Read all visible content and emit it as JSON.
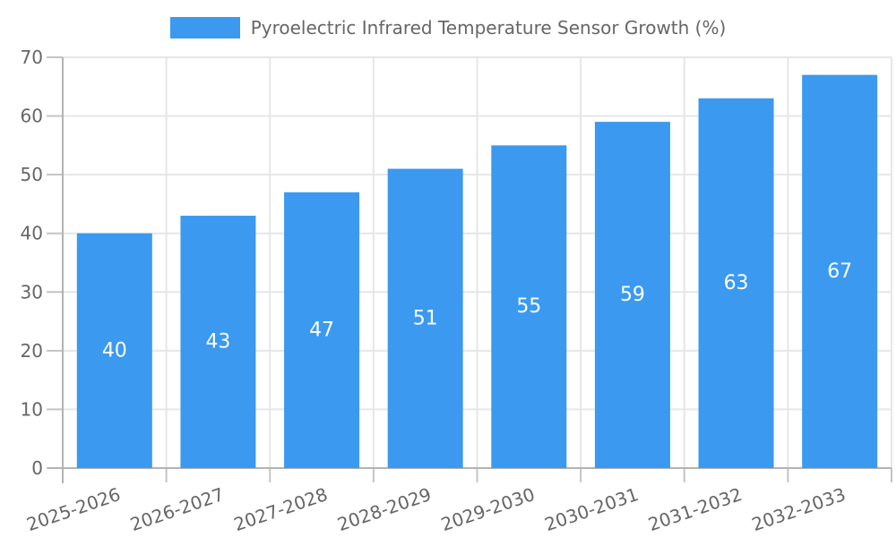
{
  "chart_data": {
    "type": "bar",
    "title": "Pyroelectric Infrared Temperature Sensor Growth (%)",
    "categories": [
      "2025-2026",
      "2026-2027",
      "2027-2028",
      "2028-2029",
      "2029-2030",
      "2030-2031",
      "2031-2032",
      "2032-2033"
    ],
    "values": [
      40,
      43,
      47,
      51,
      55,
      59,
      63,
      67
    ],
    "value_labels": [
      "40",
      "43",
      "47",
      "51",
      "55",
      "59",
      "63",
      "67"
    ],
    "xlabel": "",
    "ylabel": "",
    "ylim": [
      0,
      70
    ],
    "ytick_step": 10,
    "yticks": [
      0,
      10,
      20,
      30,
      40,
      50,
      60,
      70
    ],
    "grid": true,
    "legend_position": "top",
    "x_label_rotation_deg": -19,
    "colors": {
      "bar": "#3B99F0",
      "value_label": "#FFFFFF",
      "axis_text": "#666666",
      "grid_line": "#E6E6E6",
      "tick_mark": "#C4C4C4",
      "axis_line": "#B3B3B3",
      "background": "#FFFFFF"
    }
  }
}
